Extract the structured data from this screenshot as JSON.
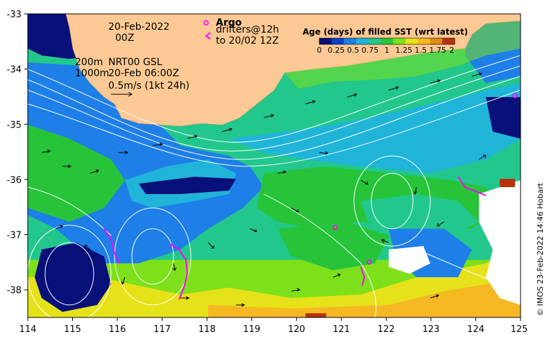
{
  "map": {
    "date_line1": "20-Feb-2022",
    "date_line2": "00Z",
    "argo_label": "Argo",
    "drifters_line1": "drifters@12h",
    "drifters_line2": "to 20/02 12Z",
    "depth_line1": "200m",
    "depth_line2": "1000m",
    "product_line1": "NRT00 GSL",
    "product_line2": "20-Feb 06:00Z",
    "scale_label": "0.5m/s (1kt 24h)",
    "credit": "© IMOS 23-Feb-2022 14:46 Hobart",
    "x_ticks": [
      "114",
      "115",
      "116",
      "117",
      "118",
      "119",
      "120",
      "121",
      "122",
      "123",
      "124",
      "125"
    ],
    "y_ticks": [
      "-33",
      "-34",
      "-35",
      "-36",
      "-37",
      "-38"
    ],
    "colors": {
      "land": "#fcc994",
      "argo": "#ff00ff",
      "drifter": "#ff00ff",
      "contour": "#ffffff",
      "arrow": "#000000"
    }
  },
  "colorbar": {
    "title": "Age (days) of filled SST (wrt latest)",
    "tick_labels": [
      "0",
      "0.25",
      "0.5",
      "0.75",
      "1",
      "1.25",
      "1.5",
      "1.75",
      "2"
    ],
    "colors": [
      "#08107a",
      "#0a3fc8",
      "#1e7fe8",
      "#20b4d8",
      "#22c78c",
      "#27c43a",
      "#7de01a",
      "#e6e21a",
      "#f5b822",
      "#e08a18",
      "#b8320e"
    ]
  },
  "chart_data": {
    "type": "heatmap",
    "title": "Age (days) of filled SST (wrt latest)",
    "xlim": [
      114,
      125
    ],
    "ylim": [
      -38.5,
      -33
    ],
    "x_ticks": [
      114,
      115,
      116,
      117,
      118,
      119,
      120,
      121,
      122,
      123,
      124,
      125
    ],
    "y_ticks": [
      -33,
      -34,
      -35,
      -36,
      -37,
      -38
    ],
    "colorbar_range": [
      0,
      2
    ]
  }
}
